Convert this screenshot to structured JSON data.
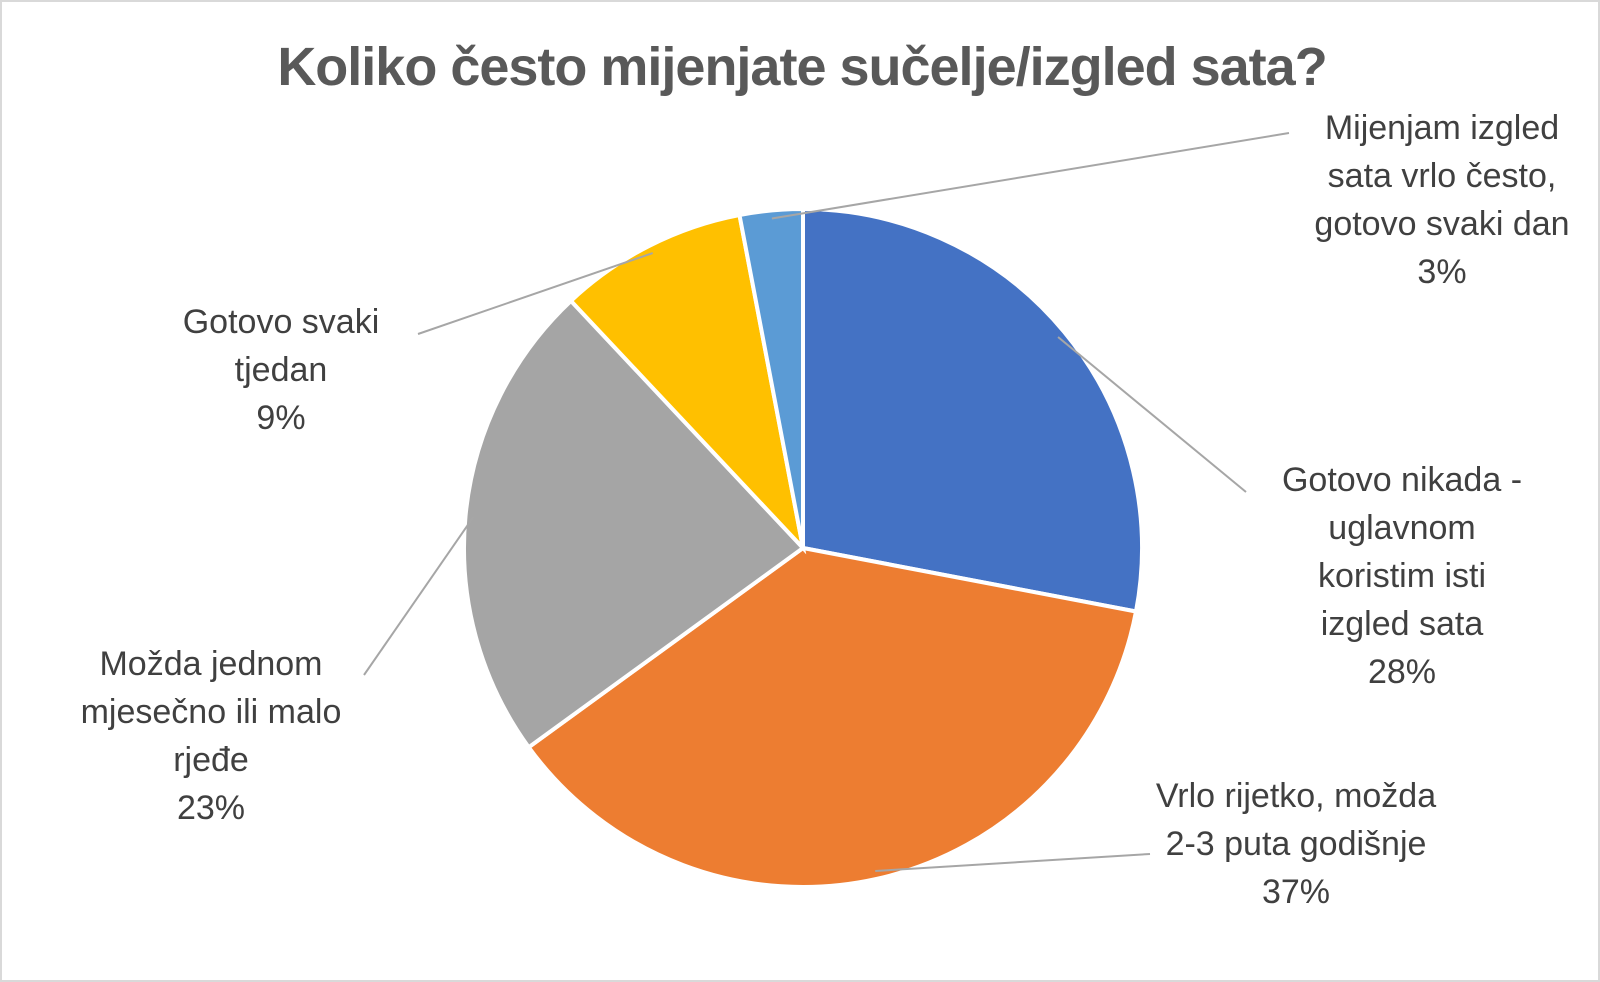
{
  "chart_data": {
    "type": "pie",
    "title": "Koliko često mijenjate sučelje/izgled sata?",
    "categories": [
      "Gotovo nikada - uglavnom koristim isti izgled sata",
      "Vrlo rijetko, možda 2-3 puta godišnje",
      "Možda jednom mjesečno ili malo rjeđe",
      "Gotovo svaki tjedan",
      "Mijenjam izgled sata vrlo često, gotovo svaki dan"
    ],
    "values": [
      28,
      37,
      23,
      9,
      3
    ],
    "value_labels": [
      "28%",
      "37%",
      "23%",
      "9%",
      "3%"
    ],
    "colors": [
      "#4472c4",
      "#ed7d31",
      "#a5a5a5",
      "#ffc000",
      "#5b9bd5"
    ]
  }
}
